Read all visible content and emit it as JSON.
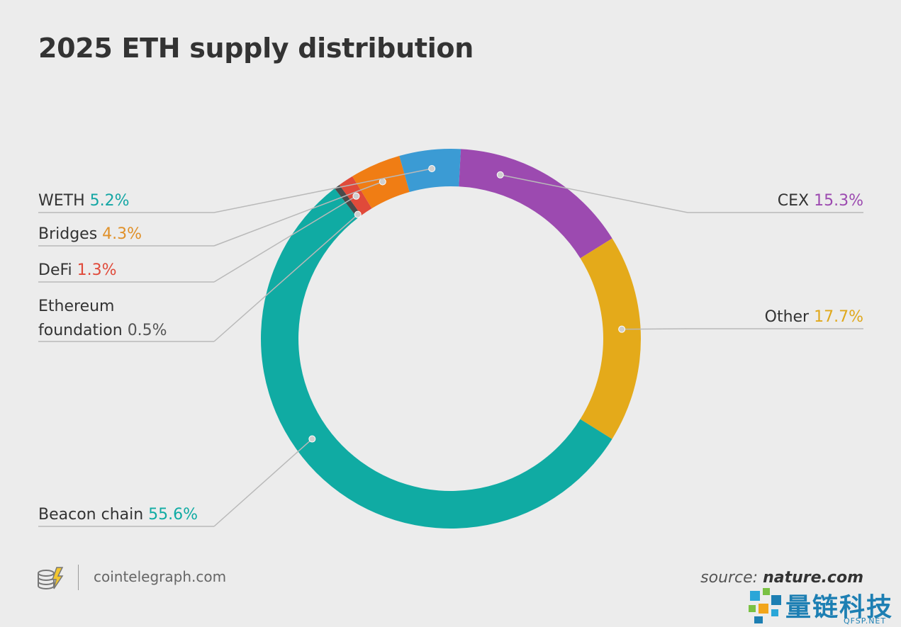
{
  "title": "2025 ETH supply distribution",
  "chart_data": {
    "type": "pie",
    "title": "2025 ETH supply distribution",
    "donut": true,
    "unit": "%",
    "slices": [
      {
        "label": "Beacon chain",
        "value": 55.6,
        "value_text": "55.6%",
        "color": "#10aba3",
        "side": "left"
      },
      {
        "label": "Ethereum foundation",
        "label_lines": [
          "Ethereum",
          "foundation"
        ],
        "value": 0.5,
        "value_text": "0.5%",
        "color": "#4a4a4a",
        "value_color": "#555555",
        "side": "left"
      },
      {
        "label": "DeFi",
        "value": 1.3,
        "value_text": "1.3%",
        "color": "#e04a3a",
        "side": "left"
      },
      {
        "label": "Bridges",
        "value": 4.3,
        "value_text": "4.3%",
        "color": "#f07d14",
        "value_color": "#e0912a",
        "side": "left"
      },
      {
        "label": "WETH",
        "value": 5.2,
        "value_text": "5.2%",
        "color": "#3b9bd4",
        "value_color": "#14a6a4",
        "side": "left"
      },
      {
        "label": "CEX",
        "value": 15.3,
        "value_text": "15.3%",
        "color": "#9c4ab0",
        "side": "right"
      },
      {
        "label": "Other",
        "value": 17.7,
        "value_text": "17.7%",
        "color": "#e4aa1a",
        "value_color": "#e0a81c",
        "side": "right"
      }
    ]
  },
  "footer": {
    "brand": "cointelegraph.com",
    "source_label": "source:",
    "source_site": "nature.com"
  },
  "watermark": {
    "text": "量链科技",
    "sub": "QFSP.NET"
  }
}
